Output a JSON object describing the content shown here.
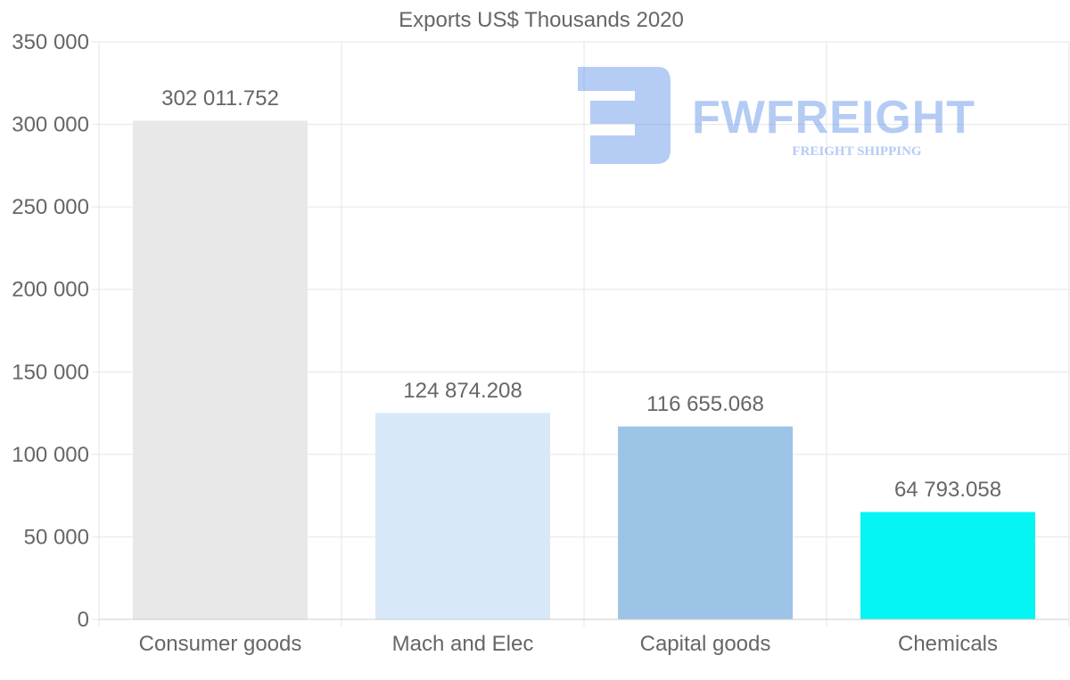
{
  "chart_data": {
    "type": "bar",
    "title": "Exports US$ Thousands 2020",
    "categories": [
      "Consumer goods",
      "Mach and Elec",
      "Capital goods",
      "Chemicals"
    ],
    "values": [
      302011.752,
      124874.208,
      116655.068,
      64793.058
    ],
    "value_labels": [
      "302 011.752",
      "124 874.208",
      "116 655.068",
      "64 793.058"
    ],
    "bar_colors": [
      "#e8e8e8",
      "#d8e8f8",
      "#9cc4e6",
      "#05f5f5"
    ],
    "ylim": [
      0,
      350000
    ],
    "yticks": [
      0,
      50000,
      100000,
      150000,
      200000,
      250000,
      300000,
      350000
    ],
    "ytick_labels": [
      "0",
      "50 000",
      "100 000",
      "150 000",
      "200 000",
      "250 000",
      "300 000",
      "350 000"
    ],
    "xlabel": "",
    "ylabel": "",
    "grid": true,
    "legend": "none"
  },
  "watermark": {
    "name": "FWFREIGHT",
    "tagline": "FREIGHT SHIPPING",
    "color": "#5b8ee8",
    "icon": "fwfreight-logo-icon"
  },
  "colors": {
    "text": "#666666",
    "grid": "#e6e6e6",
    "axis": "#cccccc"
  }
}
